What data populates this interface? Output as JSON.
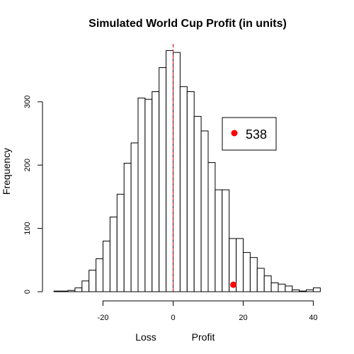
{
  "chart_data": {
    "type": "bar",
    "title": "Simulated World Cup Profit (in units)",
    "xlabel_left": "Loss",
    "xlabel_right": "Profit",
    "ylabel": "Frequency",
    "xlim": [
      -34,
      42
    ],
    "ylim": [
      0,
      380
    ],
    "x_ticks": [
      -20,
      0,
      20,
      40
    ],
    "y_ticks": [
      0,
      100,
      200,
      300
    ],
    "bin_width": 2,
    "bins": [
      {
        "start": -34,
        "value": 1
      },
      {
        "start": -32,
        "value": 1
      },
      {
        "start": -30,
        "value": 2
      },
      {
        "start": -28,
        "value": 6
      },
      {
        "start": -26,
        "value": 17
      },
      {
        "start": -24,
        "value": 34
      },
      {
        "start": -22,
        "value": 52
      },
      {
        "start": -20,
        "value": 80
      },
      {
        "start": -18,
        "value": 118
      },
      {
        "start": -16,
        "value": 154
      },
      {
        "start": -14,
        "value": 203
      },
      {
        "start": -12,
        "value": 235
      },
      {
        "start": -10,
        "value": 306
      },
      {
        "start": -8,
        "value": 304
      },
      {
        "start": -6,
        "value": 316
      },
      {
        "start": -4,
        "value": 354
      },
      {
        "start": -2,
        "value": 381
      },
      {
        "start": 0,
        "value": 378
      },
      {
        "start": 2,
        "value": 324
      },
      {
        "start": 4,
        "value": 316
      },
      {
        "start": 6,
        "value": 277
      },
      {
        "start": 8,
        "value": 254
      },
      {
        "start": 10,
        "value": 204
      },
      {
        "start": 12,
        "value": 161
      },
      {
        "start": 14,
        "value": 161
      },
      {
        "start": 16,
        "value": 84
      },
      {
        "start": 18,
        "value": 84
      },
      {
        "start": 20,
        "value": 62
      },
      {
        "start": 22,
        "value": 54
      },
      {
        "start": 24,
        "value": 37
      },
      {
        "start": 26,
        "value": 25
      },
      {
        "start": 28,
        "value": 14
      },
      {
        "start": 30,
        "value": 12
      },
      {
        "start": 32,
        "value": 9
      },
      {
        "start": 34,
        "value": 3
      },
      {
        "start": 36,
        "value": 1
      },
      {
        "start": 38,
        "value": 3
      },
      {
        "start": 40,
        "value": 6
      }
    ],
    "reference_line": {
      "x": 0,
      "color": "#cc0000",
      "style": "dashed"
    },
    "highlight_point": {
      "x": 17.2,
      "y": 11,
      "color": "#ff0000"
    },
    "legend": {
      "label": "538",
      "marker_color": "#ff0000",
      "placement": "top-right"
    },
    "grid": false
  }
}
